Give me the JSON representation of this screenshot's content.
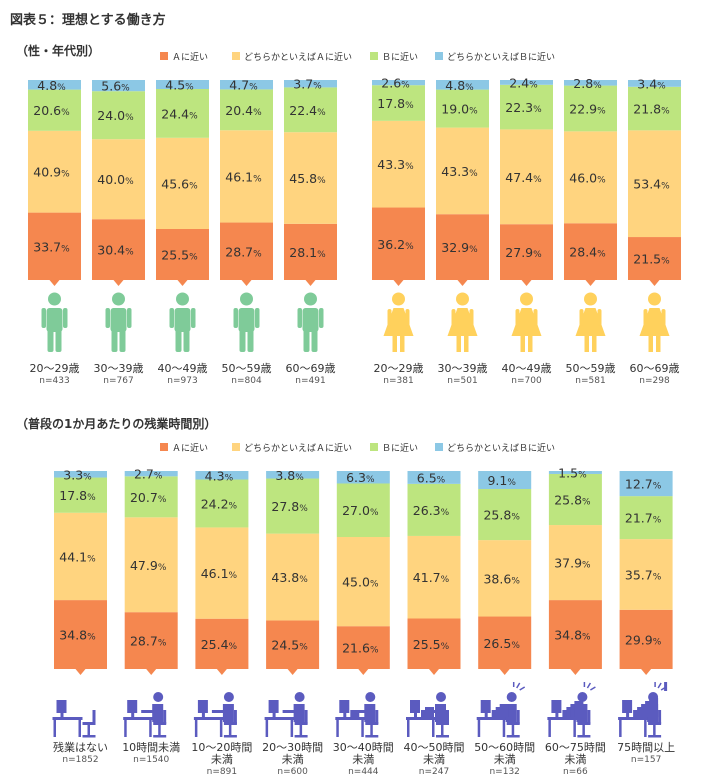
{
  "figure_title": "図表５：理想とする働き方",
  "legend_items": [
    {
      "label": "Ａに近い",
      "color": "#F5874F"
    },
    {
      "label": "どちらかといえばＡに近い",
      "color": "#FFD47F"
    },
    {
      "label": "Ｂに近い",
      "color": "#BDE57F"
    },
    {
      "label": "どちらかといえばＢに近い",
      "color": "#8CC8E5"
    }
  ],
  "colors": {
    "male": "#7FCB99",
    "female": "#FFD15C",
    "worker": "#5B5BBF"
  },
  "chart_data": [
    {
      "type": "bar",
      "stacked": true,
      "title": "（性・年代別）",
      "series_names": [
        "Ａに近い",
        "どちらかといえばＡに近い",
        "Ｂに近い",
        "どちらかといえばＢに近い"
      ],
      "groups": [
        {
          "gender": "male",
          "categories": [
            {
              "label": "20〜29歳",
              "n": "n=433",
              "values": [
                33.7,
                40.9,
                20.6,
                4.8
              ]
            },
            {
              "label": "30〜39歳",
              "n": "n=767",
              "values": [
                30.4,
                40.0,
                24.0,
                5.6
              ]
            },
            {
              "label": "40〜49歳",
              "n": "n=973",
              "values": [
                25.5,
                45.6,
                24.4,
                4.5
              ]
            },
            {
              "label": "50〜59歳",
              "n": "n=804",
              "values": [
                28.7,
                46.1,
                20.4,
                4.7
              ]
            },
            {
              "label": "60〜69歳",
              "n": "n=491",
              "values": [
                28.1,
                45.8,
                22.4,
                3.7
              ]
            }
          ]
        },
        {
          "gender": "female",
          "categories": [
            {
              "label": "20〜29歳",
              "n": "n=381",
              "values": [
                36.2,
                43.3,
                17.8,
                2.6
              ]
            },
            {
              "label": "30〜39歳",
              "n": "n=501",
              "values": [
                32.9,
                43.3,
                19.0,
                4.8
              ]
            },
            {
              "label": "40〜49歳",
              "n": "n=700",
              "values": [
                27.9,
                47.4,
                22.3,
                2.4
              ]
            },
            {
              "label": "50〜59歳",
              "n": "n=581",
              "values": [
                28.4,
                46.0,
                22.9,
                2.8
              ]
            },
            {
              "label": "60〜69歳",
              "n": "n=298",
              "values": [
                21.5,
                53.4,
                21.8,
                3.4
              ]
            }
          ]
        }
      ]
    },
    {
      "type": "bar",
      "stacked": true,
      "title": "（普段の1か月あたりの残業時間別）",
      "series_names": [
        "Ａに近い",
        "どちらかといえばＡに近い",
        "Ｂに近い",
        "どちらかといえばＢに近い"
      ],
      "categories": [
        {
          "label": "残業はない",
          "n": "n=1852",
          "values": [
            34.8,
            44.1,
            17.8,
            3.3
          ]
        },
        {
          "label": "10時間未満",
          "n": "n=1540",
          "values": [
            28.7,
            47.9,
            20.7,
            2.7
          ]
        },
        {
          "label": "10〜20時間|未満",
          "n": "n=891",
          "values": [
            25.4,
            46.1,
            24.2,
            4.3
          ]
        },
        {
          "label": "20〜30時間|未満",
          "n": "n=600",
          "values": [
            24.5,
            43.8,
            27.8,
            3.8
          ]
        },
        {
          "label": "30〜40時間|未満",
          "n": "n=444",
          "values": [
            21.6,
            45.0,
            27.0,
            6.3
          ]
        },
        {
          "label": "40〜50時間|未満",
          "n": "n=247",
          "values": [
            25.5,
            41.7,
            26.3,
            6.5
          ]
        },
        {
          "label": "50〜60時間|未満",
          "n": "n=132",
          "values": [
            26.5,
            38.6,
            25.8,
            9.1
          ]
        },
        {
          "label": "60〜75時間|未満",
          "n": "n=66",
          "values": [
            34.8,
            37.9,
            25.8,
            1.5
          ]
        },
        {
          "label": "75時間以上",
          "n": "n=157",
          "values": [
            29.9,
            35.7,
            21.7,
            12.7
          ]
        }
      ]
    }
  ]
}
